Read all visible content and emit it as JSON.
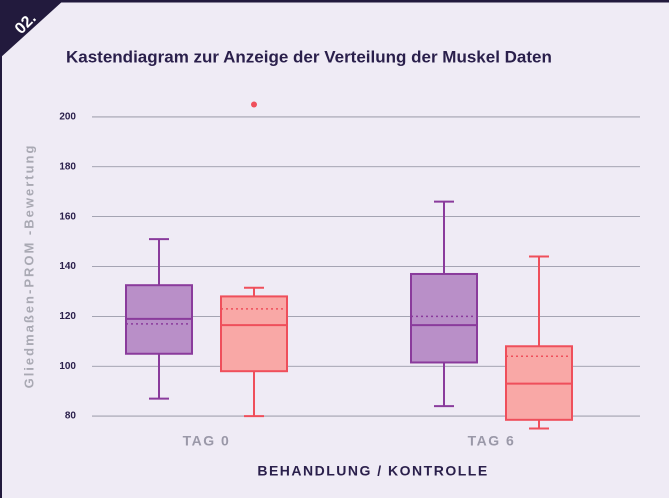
{
  "badge": "02.",
  "chart_data": {
    "type": "box",
    "title": "Kastendiagram zur Anzeige der  Verteilung der Muskel Daten",
    "y_label": "Gliedmaßen-PROM -Bewertung",
    "x_label": "BEHANDLUNG / KONTROLLE",
    "categories": [
      "TAG 0",
      "TAG 6"
    ],
    "ylim": [
      70,
      210
    ],
    "yticks": [
      80,
      100,
      120,
      140,
      160,
      180,
      200
    ],
    "grid": true,
    "series": [
      {
        "color": "#8a3b9c",
        "fill": "#b98fc8",
        "boxes": [
          {
            "min": 87,
            "q1": 105,
            "median": 119,
            "q3": 132.5,
            "max": 151,
            "mean": 117,
            "outliers": []
          },
          {
            "min": 84,
            "q1": 101.5,
            "median": 116.5,
            "q3": 137,
            "max": 166,
            "mean": 120,
            "outliers": []
          }
        ]
      },
      {
        "color": "#ef4f5b",
        "fill": "#f9a8a6",
        "boxes": [
          {
            "min": 80,
            "q1": 98,
            "median": 116.5,
            "q3": 128,
            "max": 131.5,
            "mean": 123,
            "outliers": [
              205
            ]
          },
          {
            "min": 75,
            "q1": 78.5,
            "median": 93,
            "q3": 108,
            "max": 144,
            "mean": 104,
            "outliers": []
          }
        ]
      }
    ]
  }
}
